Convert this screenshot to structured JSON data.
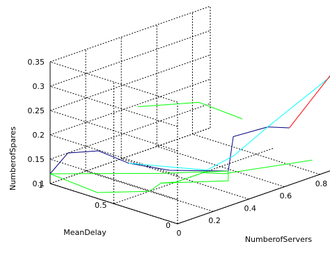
{
  "chart_data": {
    "type": "line",
    "projection": "3d",
    "grid": true,
    "xlabel": "NumberofServers",
    "ylabel": "MeanDelay",
    "zlabel": "NumberofSpares",
    "xlim": [
      0,
      0.9
    ],
    "ylim": [
      0,
      1
    ],
    "zlim": [
      0.1,
      0.35
    ],
    "xticks": [
      "0",
      "0.2",
      "0.4",
      "0.6",
      "0.8"
    ],
    "yticks": [
      "0",
      "0.5",
      "1"
    ],
    "zticks": [
      "0.1",
      "0.15",
      "0.2",
      "0.25",
      "0.3",
      "0.35"
    ],
    "series": [
      {
        "color": "#000080",
        "points": [
          [
            0,
            1,
            0.12
          ],
          [
            0.1,
            1,
            0.15
          ],
          [
            0.2,
            0.9,
            0.15
          ],
          [
            0.3,
            0.8,
            0.12
          ],
          [
            0.35,
            0.55,
            0.12
          ],
          [
            0.5,
            0.3,
            0.12
          ],
          [
            0.6,
            0.4,
            0.17
          ],
          [
            0.65,
            0.2,
            0.2
          ],
          [
            0.7,
            0.1,
            0.2
          ]
        ]
      },
      {
        "color": "#00ffff",
        "points": [
          [
            0.3,
            0.8,
            0.12
          ],
          [
            0.45,
            0.4,
            0.12
          ],
          [
            0.6,
            0.4,
            0.13
          ],
          [
            0.65,
            0.2,
            0.2
          ],
          [
            0.9,
            0.0,
            0.3
          ]
        ]
      },
      {
        "color": "#ff0000",
        "points": [
          [
            0.7,
            0.1,
            0.2
          ],
          [
            0.9,
            0.0,
            0.31
          ]
        ]
      },
      {
        "color": "#00ff00",
        "points": [
          [
            0,
            1,
            0.12
          ],
          [
            0.05,
            0.7,
            0.1
          ],
          [
            0.2,
            0.5,
            0.1
          ],
          [
            0.3,
            0.55,
            0.1
          ],
          [
            0.5,
            0.3,
            0.1
          ],
          [
            0.5,
            0.3,
            0.12
          ],
          [
            0.3,
            0.55,
            0.12
          ],
          [
            0.0,
            1.0,
            0.12
          ]
        ]
      },
      {
        "color": "#00ff00",
        "points": [
          [
            0.3,
            0.55,
            0.1
          ],
          [
            0.35,
            0.5,
            0.1
          ],
          [
            0.5,
            0.5,
            0.1
          ],
          [
            0.55,
            0.4,
            0.1
          ],
          [
            0.9,
            0.2,
            0.1
          ]
        ]
      },
      {
        "color": "#00ff00",
        "points": [
          [
            0.35,
            0.8,
            0.23
          ],
          [
            0.55,
            0.6,
            0.23
          ],
          [
            0.65,
            0.4,
            0.2
          ]
        ]
      }
    ]
  }
}
